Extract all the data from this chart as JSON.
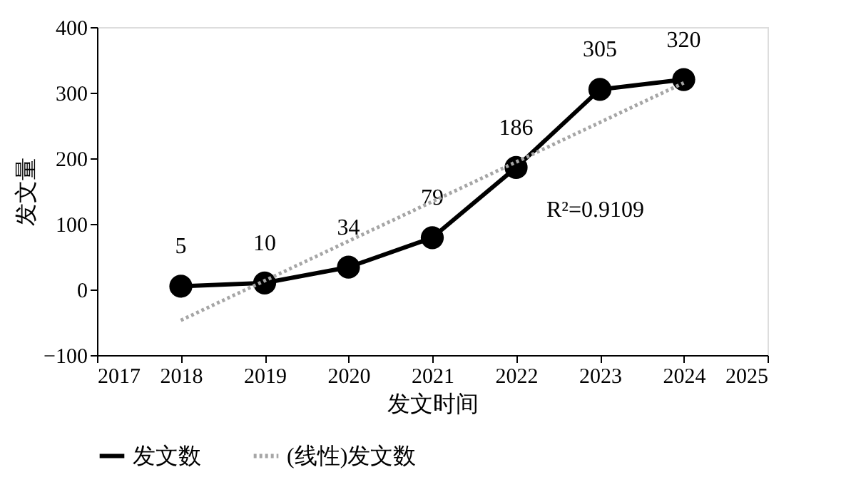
{
  "chart_data": {
    "type": "line",
    "xlabel": "发文时间",
    "ylabel": "发文量",
    "x": [
      2018,
      2019,
      2020,
      2021,
      2022,
      2023,
      2024
    ],
    "series": [
      {
        "name": "发文数",
        "color": "#000000",
        "values": [
          5,
          10,
          34,
          79,
          186,
          305,
          320
        ],
        "marker": "circle",
        "line_style": "solid",
        "data_labels": true
      },
      {
        "name": "(线性)发文数",
        "color": "#a6a6a6",
        "type": "line",
        "x": [
          2018,
          2024
        ],
        "values": [
          -47,
          315
        ],
        "marker": "none",
        "line_style": "dotted"
      }
    ],
    "xlim": [
      2017,
      2025
    ],
    "xticks": [
      2017,
      2018,
      2019,
      2020,
      2021,
      2022,
      2023,
      2024,
      2025
    ],
    "ylim": [
      -100,
      400
    ],
    "yticks": [
      -100,
      0,
      100,
      200,
      300,
      400
    ],
    "annotations": [
      "R²=0.9109"
    ],
    "grid": false,
    "legend": "bottom"
  }
}
